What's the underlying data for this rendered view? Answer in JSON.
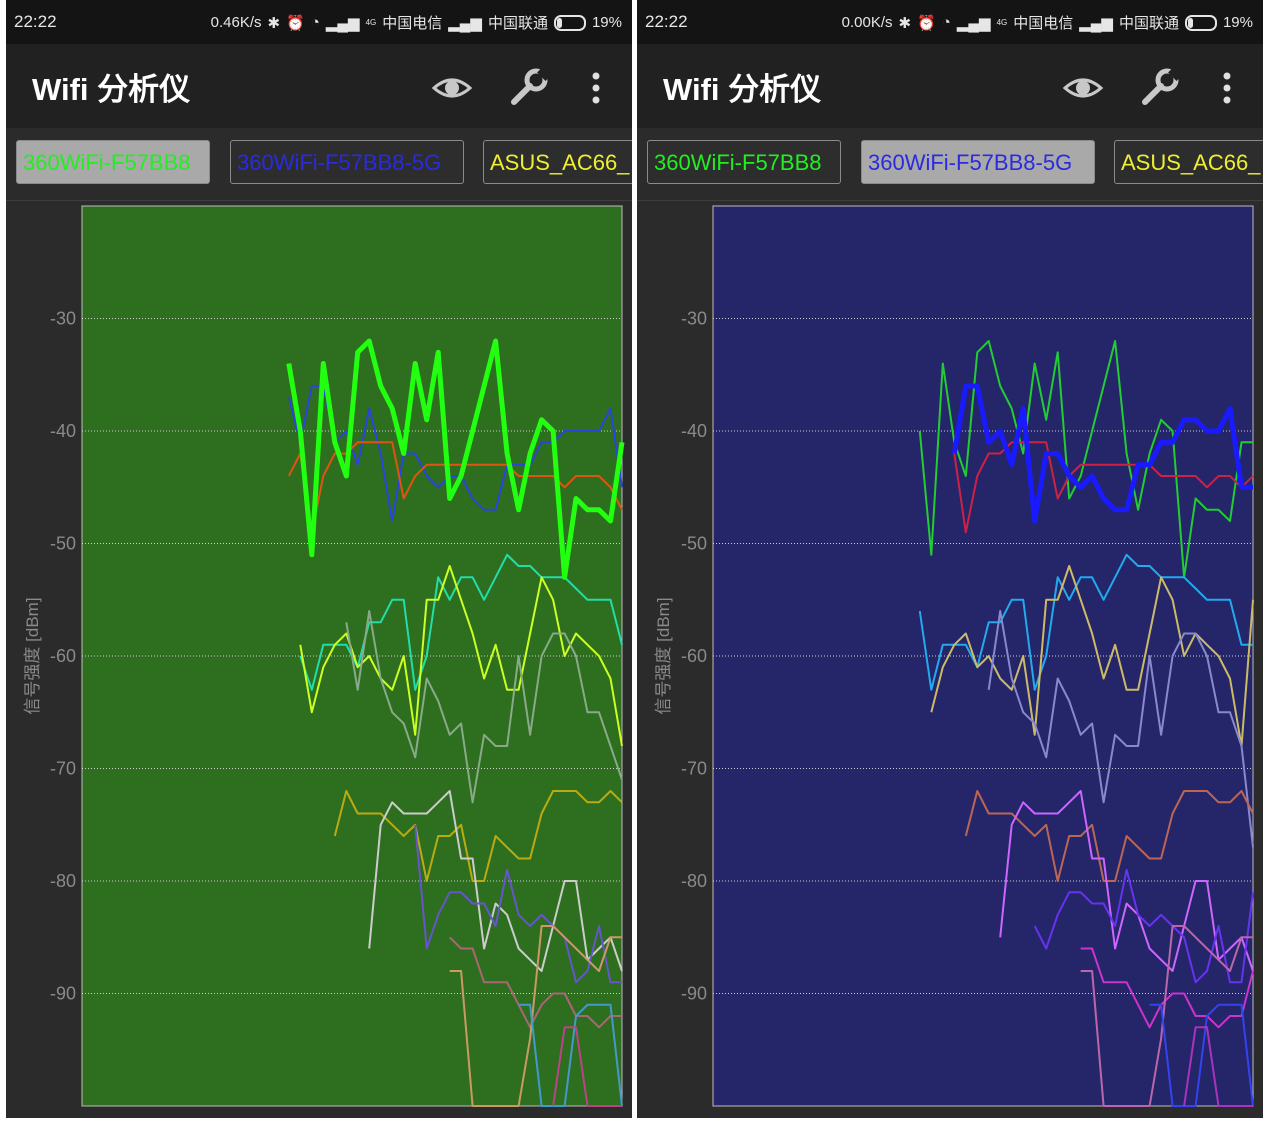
{
  "status_left": {
    "time": "22:22",
    "speed": "0.46K/s",
    "carrier1": "中国电信",
    "carrier2": "中国联通",
    "battery": "19%",
    "net_label": "4G"
  },
  "status_right": {
    "time": "22:22",
    "speed": "0.00K/s",
    "carrier1": "中国电信",
    "carrier2": "中国联通",
    "battery": "19%",
    "net_label": "4G"
  },
  "app": {
    "title": "Wifi 分析仪",
    "icons": [
      "eye-icon",
      "wrench-icon",
      "more-vert-icon"
    ]
  },
  "tabs": [
    {
      "label": "360WiFi-F57BB8",
      "color": "#22ee22"
    },
    {
      "label": "360WiFi-F57BB8-5G",
      "color": "#2a2ae0"
    },
    {
      "label": "ASUS_AC66_",
      "color": "#eeee33"
    }
  ],
  "left_selected_tab": 0,
  "right_selected_tab": 1,
  "colors": {
    "left_fill": "#2d6e1f",
    "right_fill": "#25256a",
    "grid": "#cfcfcf"
  },
  "chart_data": {
    "type": "line",
    "ylabel": "信号强度 [dBm]",
    "yticks": [
      -30,
      -40,
      -50,
      -60,
      -70,
      -80,
      -90
    ],
    "ylim": [
      -100,
      -20
    ],
    "xlim": [
      0,
      47
    ],
    "grid": true,
    "series_left": [
      {
        "name": "360WiFi-F57BB8",
        "color": "#22ff11",
        "width": 5,
        "highlight": true,
        "values": [
          -34,
          -40,
          -51,
          -34,
          -41,
          -44,
          -33,
          -32,
          -36,
          -38,
          -42,
          -34,
          -39,
          -33,
          -46,
          -44,
          -40,
          -36,
          -32,
          -42,
          -47,
          -42,
          -39,
          -40,
          -53,
          -46,
          -47,
          -47,
          -48,
          -41
        ]
      },
      {
        "name": "360WiFi-F57BB8-5G",
        "color": "#2a44dd",
        "width": 2,
        "values": [
          -37,
          -41,
          -36,
          -36,
          -41,
          -40,
          -43,
          -38,
          -42,
          -48,
          -42,
          -42,
          -44,
          -45,
          -44,
          -44,
          -46,
          -47,
          -47,
          -43,
          -43,
          -43,
          -41,
          -41,
          -40,
          -40,
          -40,
          -40,
          -38,
          -45
        ]
      },
      {
        "name": "ASUS_AC66_",
        "color": "#dd5511",
        "width": 2,
        "values": [
          -44,
          -42,
          -49,
          -44,
          -42,
          -42,
          -41,
          -41,
          -41,
          -41,
          -46,
          -44,
          -43,
          -43,
          -43,
          -43,
          -43,
          -43,
          -43,
          -43,
          -44,
          -44,
          -44,
          -44,
          -45,
          -44,
          -44,
          -44,
          -45,
          -47
        ]
      },
      {
        "name": "",
        "color": "#22ddaa",
        "width": 2,
        "values": [
          -60,
          -63,
          -59,
          -59,
          -59,
          -61,
          -57,
          -57,
          -55,
          -55,
          -63,
          -60,
          -53,
          -55,
          -53,
          -53,
          -55,
          -53,
          -51,
          -52,
          -52,
          -53,
          -53,
          -53,
          -54,
          -55,
          -55,
          -55,
          -59
        ]
      },
      {
        "name": "",
        "color": "#ccff22",
        "width": 2,
        "values": [
          -59,
          -65,
          -61,
          -59,
          -58,
          -61,
          -60,
          -62,
          -63,
          -60,
          -67,
          -55,
          -55,
          -52,
          -55,
          -58,
          -62,
          -59,
          -63,
          -63,
          -58,
          -53,
          -55,
          -60,
          -58,
          -59,
          -60,
          -62,
          -68
        ]
      },
      {
        "name": "",
        "color": "#88aa88",
        "width": 2,
        "values": [
          -57,
          -63,
          -56,
          -62,
          -65,
          -66,
          -69,
          -62,
          -64,
          -67,
          -66,
          -73,
          -67,
          -68,
          -68,
          -60,
          -67,
          -60,
          -58,
          -58,
          -60,
          -65,
          -65,
          -68,
          -71
        ]
      },
      {
        "name": "",
        "color": "#bbaa11",
        "width": 2,
        "values": [
          -76,
          -72,
          -74,
          -74,
          -74,
          -75,
          -76,
          -75,
          -80,
          -76,
          -76,
          -75,
          -80,
          -80,
          -76,
          -77,
          -78,
          -78,
          -74,
          -72,
          -72,
          -72,
          -73,
          -73,
          -72,
          -73
        ]
      },
      {
        "name": "",
        "color": "#cccccc",
        "width": 2,
        "values": [
          -86,
          -75,
          -73,
          -74,
          -74,
          -74,
          -73,
          -72,
          -78,
          -78,
          -86,
          -82,
          -83,
          -86,
          -87,
          -88,
          -84,
          -80,
          -80,
          -87,
          -86,
          -85,
          -88
        ]
      },
      {
        "name": "",
        "color": "#6655cc",
        "width": 2,
        "values": [
          -75,
          -86,
          -83,
          -81,
          -81,
          -82,
          -82,
          -84,
          -79,
          -83,
          -84,
          -83,
          -84,
          -85,
          -89,
          -88,
          -84,
          -89,
          -89
        ]
      },
      {
        "name": "",
        "color": "#aa6677",
        "width": 2,
        "values": [
          -85,
          -86,
          -86,
          -89,
          -89,
          -89,
          -91,
          -93,
          -91,
          -90,
          -90,
          -92,
          -92,
          -93,
          -92,
          -92
        ]
      },
      {
        "name": "",
        "color": "#cc9966",
        "width": 2,
        "values": [
          -88,
          -88,
          -100,
          -100,
          -100,
          -100,
          -100,
          -94,
          -84,
          -84,
          -85,
          -86,
          -87,
          -88,
          -85,
          -85
        ]
      },
      {
        "name": "",
        "color": "#4499cc",
        "width": 2,
        "values": [
          -91,
          -91,
          -100,
          -100,
          -100,
          -92,
          -91,
          -91,
          -91,
          -100
        ]
      },
      {
        "name": "",
        "color": "#bb4488",
        "width": 2,
        "values": [
          -100,
          -93,
          -93,
          -100,
          -100,
          -100,
          -100
        ]
      }
    ],
    "series_right": [
      {
        "name": "360WiFi-F57BB8-5G",
        "color": "#1a1aff",
        "width": 5,
        "highlight": true,
        "values": [
          -42,
          -36,
          -36,
          -41,
          -40,
          -43,
          -38,
          -48,
          -42,
          -42,
          -44,
          -45,
          -44,
          -46,
          -47,
          -47,
          -43,
          -43,
          -41,
          -41,
          -39,
          -39,
          -40,
          -40,
          -38,
          -45,
          -45
        ]
      },
      {
        "name": "360WiFi-F57BB8",
        "color": "#22cc33",
        "width": 2,
        "values": [
          -40,
          -51,
          -34,
          -41,
          -44,
          -33,
          -32,
          -36,
          -38,
          -42,
          -34,
          -39,
          -33,
          -46,
          -44,
          -40,
          -36,
          -32,
          -42,
          -47,
          -42,
          -39,
          -40,
          -53,
          -46,
          -47,
          -47,
          -48,
          -41,
          -41
        ]
      },
      {
        "name": "ASUS_AC66_",
        "color": "#cc2244",
        "width": 2,
        "values": [
          -42,
          -49,
          -44,
          -42,
          -42,
          -41,
          -41,
          -41,
          -41,
          -46,
          -44,
          -43,
          -43,
          -43,
          -43,
          -43,
          -43,
          -43,
          -44,
          -44,
          -44,
          -44,
          -45,
          -44,
          -44,
          -45,
          -44
        ]
      },
      {
        "name": "",
        "color": "#22aaee",
        "width": 2,
        "values": [
          -56,
          -63,
          -59,
          -59,
          -59,
          -61,
          -57,
          -57,
          -55,
          -55,
          -63,
          -60,
          -53,
          -55,
          -53,
          -53,
          -55,
          -53,
          -51,
          -52,
          -52,
          -53,
          -53,
          -53,
          -54,
          -55,
          -55,
          -55,
          -59,
          -59
        ]
      },
      {
        "name": "",
        "color": "#ccbb66",
        "width": 2,
        "values": [
          -65,
          -61,
          -59,
          -58,
          -61,
          -60,
          -62,
          -63,
          -60,
          -67,
          -55,
          -55,
          -52,
          -55,
          -58,
          -62,
          -59,
          -63,
          -63,
          -58,
          -53,
          -55,
          -60,
          -58,
          -59,
          -60,
          -62,
          -68,
          -55
        ]
      },
      {
        "name": "",
        "color": "#8888cc",
        "width": 2,
        "values": [
          -63,
          -56,
          -62,
          -65,
          -66,
          -69,
          -62,
          -64,
          -67,
          -66,
          -73,
          -67,
          -68,
          -68,
          -60,
          -67,
          -60,
          -58,
          -58,
          -60,
          -65,
          -65,
          -68,
          -77
        ]
      },
      {
        "name": "",
        "color": "#bb6655",
        "width": 2,
        "values": [
          -76,
          -72,
          -74,
          -74,
          -74,
          -75,
          -76,
          -75,
          -80,
          -76,
          -76,
          -75,
          -80,
          -80,
          -76,
          -77,
          -78,
          -78,
          -74,
          -72,
          -72,
          -72,
          -73,
          -73,
          -72,
          -74
        ]
      },
      {
        "name": "",
        "color": "#cc66ff",
        "width": 2,
        "values": [
          -85,
          -75,
          -73,
          -74,
          -74,
          -74,
          -73,
          -72,
          -78,
          -78,
          -86,
          -82,
          -83,
          -86,
          -87,
          -88,
          -84,
          -80,
          -80,
          -87,
          -86,
          -85,
          -88
        ]
      },
      {
        "name": "",
        "color": "#6633ee",
        "width": 2,
        "values": [
          -84,
          -86,
          -83,
          -81,
          -81,
          -82,
          -82,
          -84,
          -79,
          -83,
          -84,
          -83,
          -84,
          -85,
          -89,
          -88,
          -84,
          -89,
          -89,
          -81
        ]
      },
      {
        "name": "",
        "color": "#cc33cc",
        "width": 2,
        "values": [
          -86,
          -86,
          -89,
          -89,
          -89,
          -91,
          -93,
          -91,
          -90,
          -90,
          -92,
          -92,
          -93,
          -92,
          -92,
          -88
        ]
      },
      {
        "name": "",
        "color": "#bb66aa",
        "width": 2,
        "values": [
          -88,
          -88,
          -100,
          -100,
          -100,
          -100,
          -100,
          -94,
          -84,
          -84,
          -85,
          -86,
          -87,
          -88,
          -85,
          -85
        ]
      },
      {
        "name": "",
        "color": "#3344ee",
        "width": 2,
        "values": [
          -91,
          -91,
          -100,
          -100,
          -100,
          -92,
          -91,
          -91,
          -91,
          -100
        ]
      },
      {
        "name": "",
        "color": "#aa33bb",
        "width": 2,
        "values": [
          -100,
          -93,
          -93,
          -100,
          -100,
          -100,
          -100
        ]
      }
    ]
  }
}
